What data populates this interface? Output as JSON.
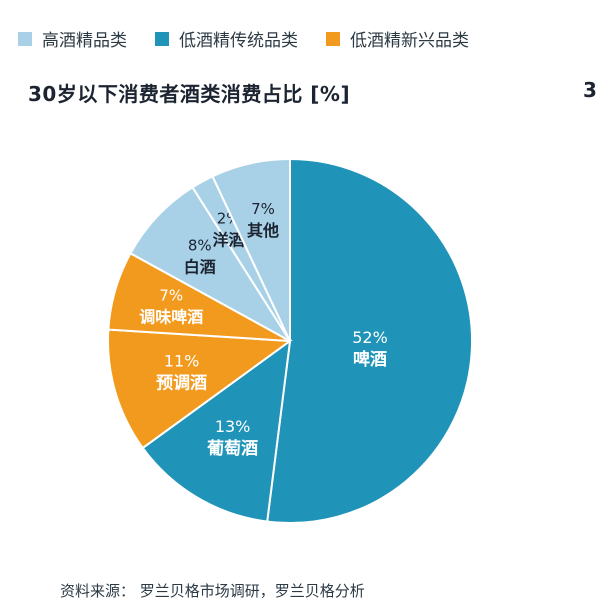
{
  "legend": [
    {
      "label": "高酒精品类",
      "color": "#a8d1e7"
    },
    {
      "label": "低酒精传统品类",
      "color": "#1f94b8"
    },
    {
      "label": "低酒精新兴品类",
      "color": "#f29a1e"
    }
  ],
  "title": "30岁以下消费者酒类消费占比 [%]",
  "cut_number": "3",
  "source": "资料来源：  罗兰贝格市场调研，罗兰贝格分析",
  "chart_data": {
    "type": "pie",
    "title": "30岁以下消费者酒类消费占比 [%]",
    "unit": "%",
    "slices": [
      {
        "name": "啤酒",
        "value": 52,
        "label": "52%",
        "group": "低酒精传统品类",
        "color": "#1f94b8",
        "label_color": "#ffffff"
      },
      {
        "name": "葡萄酒",
        "value": 13,
        "label": "13%",
        "group": "低酒精传统品类",
        "color": "#1f94b8",
        "label_color": "#ffffff"
      },
      {
        "name": "预调酒",
        "value": 11,
        "label": "11%",
        "group": "低酒精新兴品类",
        "color": "#f29a1e",
        "label_color": "#ffffff"
      },
      {
        "name": "调味啤酒",
        "value": 7,
        "label": "7%",
        "group": "低酒精新兴品类",
        "color": "#f29a1e",
        "label_color": "#ffffff"
      },
      {
        "name": "白酒",
        "value": 8,
        "label": "8%",
        "group": "高酒精品类",
        "color": "#a8d1e7",
        "label_color": "#1b2430"
      },
      {
        "name": "洋酒",
        "value": 2,
        "label": "2%",
        "group": "高酒精品类",
        "color": "#a8d1e7",
        "label_color": "#1b2430"
      },
      {
        "name": "其他",
        "value": 7,
        "label": "7%",
        "group": "高酒精品类",
        "color": "#a8d1e7",
        "label_color": "#1b2430"
      }
    ]
  }
}
